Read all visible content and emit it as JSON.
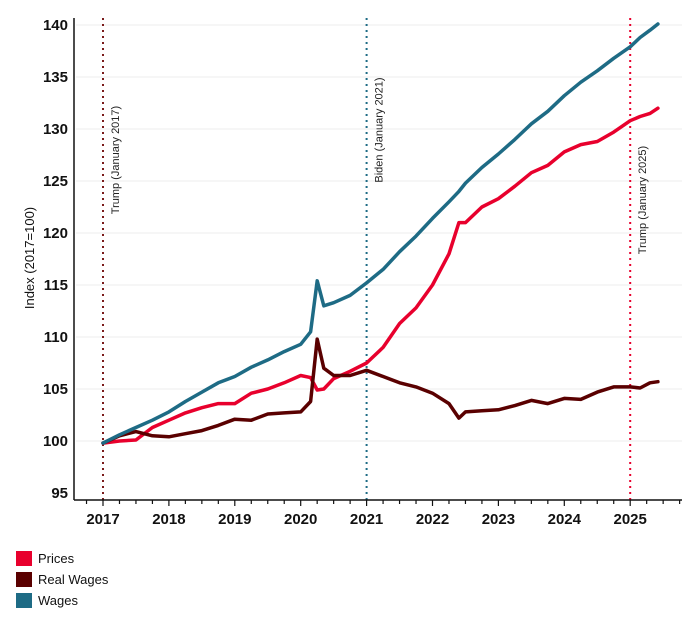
{
  "chart_data": {
    "type": "line",
    "title": "",
    "xlabel": "",
    "ylabel": "Index (2017=100)",
    "ylim": [
      95,
      140
    ],
    "xlim": [
      2016.7,
      2025.75
    ],
    "yticks": [
      95,
      100,
      105,
      110,
      115,
      120,
      125,
      130,
      135,
      140
    ],
    "xticks": [
      2017,
      2018,
      2019,
      2020,
      2021,
      2022,
      2023,
      2024,
      2025
    ],
    "xtick_labels": [
      "2017",
      "2018",
      "2019",
      "2020",
      "2021",
      "2022",
      "2023",
      "2024",
      "2025"
    ],
    "grid": "horizontal",
    "legend_position": "bottom-left",
    "series": [
      {
        "name": "Prices",
        "color": "#e8002d",
        "x": [
          2017.0,
          2017.25,
          2017.5,
          2017.75,
          2018.0,
          2018.25,
          2018.5,
          2018.75,
          2019.0,
          2019.25,
          2019.5,
          2019.75,
          2020.0,
          2020.15,
          2020.25,
          2020.35,
          2020.5,
          2020.75,
          2021.0,
          2021.25,
          2021.5,
          2021.75,
          2022.0,
          2022.25,
          2022.4,
          2022.5,
          2022.75,
          2023.0,
          2023.25,
          2023.5,
          2023.75,
          2024.0,
          2024.25,
          2024.5,
          2024.75,
          2025.0,
          2025.15,
          2025.3,
          2025.42
        ],
        "values": [
          99.8,
          100.0,
          100.1,
          101.3,
          102.0,
          102.7,
          103.2,
          103.6,
          103.6,
          104.6,
          105.0,
          105.6,
          106.3,
          106.1,
          104.9,
          105.0,
          106.0,
          106.7,
          107.5,
          109.0,
          111.3,
          112.8,
          115.0,
          118.0,
          121.0,
          121.0,
          122.5,
          123.3,
          124.5,
          125.8,
          126.5,
          127.8,
          128.5,
          128.8,
          129.7,
          130.8,
          131.2,
          131.5,
          132.0
        ]
      },
      {
        "name": "Real Wages",
        "color": "#5a0000",
        "x": [
          2017.0,
          2017.25,
          2017.5,
          2017.75,
          2018.0,
          2018.25,
          2018.5,
          2018.75,
          2019.0,
          2019.25,
          2019.5,
          2019.75,
          2020.0,
          2020.15,
          2020.25,
          2020.35,
          2020.5,
          2020.75,
          2021.0,
          2021.25,
          2021.5,
          2021.75,
          2022.0,
          2022.25,
          2022.4,
          2022.5,
          2022.75,
          2023.0,
          2023.25,
          2023.5,
          2023.75,
          2024.0,
          2024.25,
          2024.5,
          2024.75,
          2025.0,
          2025.15,
          2025.3,
          2025.42
        ],
        "values": [
          99.8,
          100.5,
          100.9,
          100.5,
          100.4,
          100.7,
          101.0,
          101.5,
          102.1,
          102.0,
          102.6,
          102.7,
          102.8,
          103.8,
          109.8,
          107.0,
          106.3,
          106.3,
          106.8,
          106.2,
          105.6,
          105.2,
          104.6,
          103.6,
          102.2,
          102.8,
          102.9,
          103.0,
          103.4,
          103.9,
          103.6,
          104.1,
          104.0,
          104.7,
          105.2,
          105.2,
          105.1,
          105.6,
          105.7
        ]
      },
      {
        "name": "Wages",
        "color": "#1e6b85",
        "x": [
          2017.0,
          2017.25,
          2017.5,
          2017.75,
          2018.0,
          2018.25,
          2018.5,
          2018.75,
          2019.0,
          2019.25,
          2019.5,
          2019.75,
          2020.0,
          2020.15,
          2020.25,
          2020.35,
          2020.5,
          2020.75,
          2021.0,
          2021.25,
          2021.5,
          2021.75,
          2022.0,
          2022.25,
          2022.4,
          2022.5,
          2022.75,
          2023.0,
          2023.25,
          2023.5,
          2023.75,
          2024.0,
          2024.25,
          2024.5,
          2024.75,
          2025.0,
          2025.15,
          2025.3,
          2025.42
        ],
        "values": [
          99.8,
          100.6,
          101.3,
          102.0,
          102.8,
          103.8,
          104.7,
          105.6,
          106.2,
          107.1,
          107.8,
          108.6,
          109.3,
          110.5,
          115.4,
          113.0,
          113.3,
          114.0,
          115.2,
          116.5,
          118.2,
          119.7,
          121.4,
          123.0,
          124.0,
          124.8,
          126.3,
          127.6,
          129.0,
          130.5,
          131.7,
          133.2,
          134.5,
          135.6,
          136.8,
          137.9,
          138.8,
          139.5,
          140.1
        ]
      }
    ],
    "annotations": [
      {
        "label": "Trump (January 2017)",
        "x": 2017.0,
        "color": "#7a1a1a"
      },
      {
        "label": "Biden (January 2021)",
        "x": 2021.0,
        "color": "#1e6b85"
      },
      {
        "label": "Trump (January 2025)",
        "x": 2025.0,
        "color": "#e8002d"
      }
    ]
  }
}
